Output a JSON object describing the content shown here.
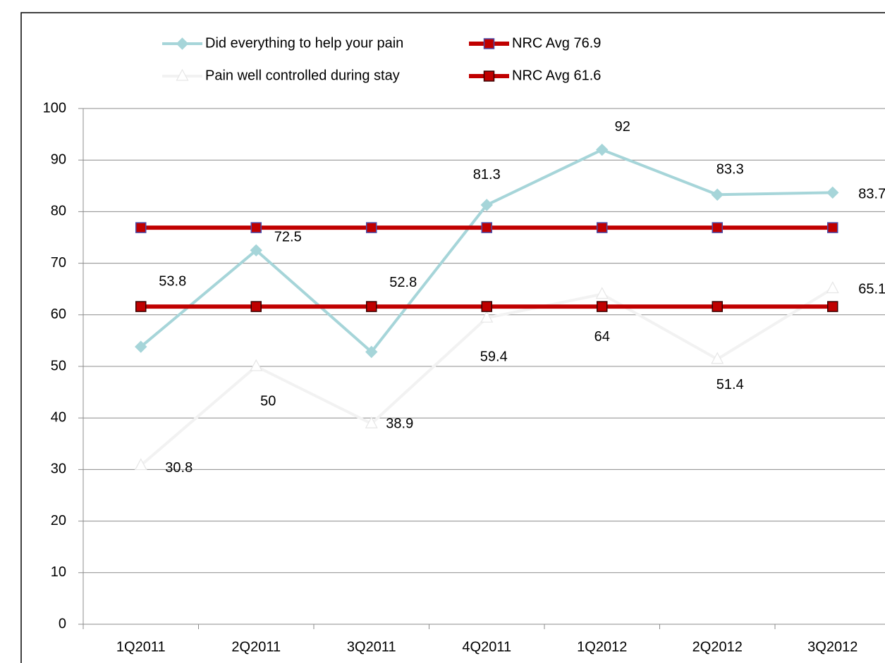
{
  "chart_data": {
    "type": "line",
    "categories": [
      "1Q2011",
      "2Q2011",
      "3Q2011",
      "4Q2011",
      "1Q2012",
      "2Q2012",
      "3Q2012"
    ],
    "series": [
      {
        "name": "Did everything to help your pain",
        "color": "#a6d5d9",
        "marker": "diamond",
        "values": [
          53.8,
          72.5,
          52.8,
          81.3,
          92,
          83.3,
          83.7
        ]
      },
      {
        "name": "NRC Avg 76.9",
        "color": "#c00000",
        "marker": "square",
        "marker_edge": "#4a4aa8",
        "values": [
          76.9,
          76.9,
          76.9,
          76.9,
          76.9,
          76.9,
          76.9
        ]
      },
      {
        "name": "Pain well controlled during stay",
        "color": "#f2f2f2",
        "marker": "triangle",
        "values": [
          30.8,
          50,
          38.9,
          59.4,
          64,
          51.4,
          65.1
        ]
      },
      {
        "name": "NRC Avg 61.6",
        "color": "#c00000",
        "marker": "square",
        "marker_edge": "#3a0000",
        "values": [
          61.6,
          61.6,
          61.6,
          61.6,
          61.6,
          61.6,
          61.6
        ]
      }
    ],
    "data_labels": [
      0,
      2
    ],
    "ylim": [
      0,
      100
    ],
    "yticks": [
      0,
      10,
      20,
      30,
      40,
      50,
      60,
      70,
      80,
      90,
      100
    ],
    "grid": true,
    "legend": "top"
  }
}
